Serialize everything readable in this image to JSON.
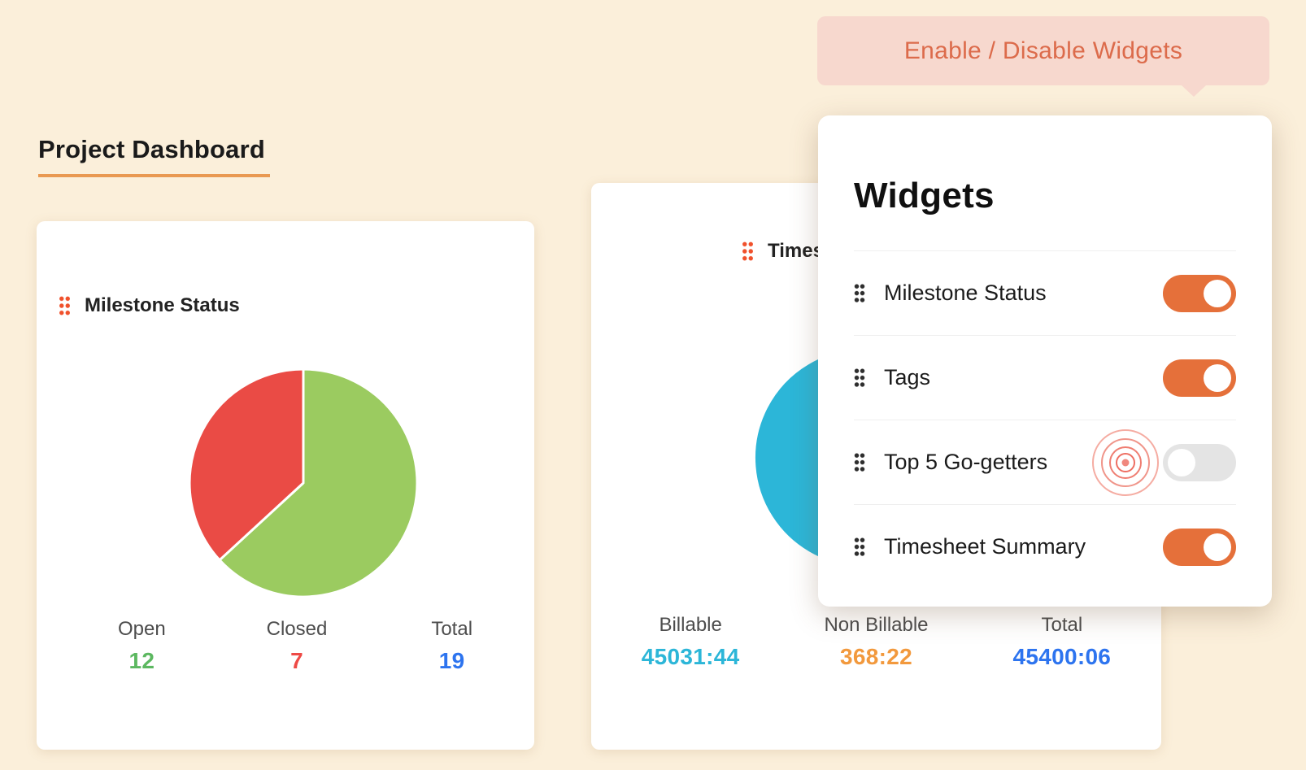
{
  "header": {
    "title": "Project Dashboard",
    "underline_color": "#e99951"
  },
  "tooltip": {
    "label": "Enable / Disable Widgets",
    "bg": "#f7d8ce",
    "text_color": "#dc6b4b"
  },
  "milestone_card": {
    "title": "Milestone Status",
    "stats": [
      {
        "label": "Open",
        "value": "12",
        "color": "#5cb860"
      },
      {
        "label": "Closed",
        "value": "7",
        "color": "#ee4a46"
      },
      {
        "label": "Total",
        "value": "19",
        "color": "#2d74ef"
      }
    ]
  },
  "timesheet_card": {
    "title": "Timesheet Summary",
    "stats": [
      {
        "label": "Billable",
        "value": "45031:44",
        "color": "#2cb6d8"
      },
      {
        "label": "Non Billable",
        "value": "368:22",
        "color": "#f2993d"
      },
      {
        "label": "Total",
        "value": "45400:06",
        "color": "#2d74ef"
      }
    ]
  },
  "widgets_popover": {
    "title": "Widgets",
    "toggle_on_color": "#e5703a",
    "toggle_off_color": "#e4e4e4",
    "items": [
      {
        "label": "Milestone Status",
        "enabled": true,
        "highlight": false
      },
      {
        "label": "Tags",
        "enabled": true,
        "highlight": false
      },
      {
        "label": "Top 5 Go-getters",
        "enabled": false,
        "highlight": true
      },
      {
        "label": "Timesheet Summary",
        "enabled": true,
        "highlight": false
      }
    ]
  },
  "chart_data": [
    {
      "type": "pie",
      "title": "Milestone Status",
      "categories": [
        "Open",
        "Closed"
      ],
      "values": [
        12,
        7
      ],
      "total": 19,
      "colors": [
        "#9bcb60",
        "#ea4b45"
      ],
      "legend_position": "none",
      "start_angle": "top",
      "direction": "clockwise"
    },
    {
      "type": "pie",
      "title": "Timesheet Summary",
      "categories": [
        "Billable",
        "Non Billable"
      ],
      "values": [
        45031.73,
        368.37
      ],
      "display_values": [
        "45031:44",
        "368:22"
      ],
      "total_display": "45400:06",
      "colors": [
        "#2cb6d8",
        "#f2993d"
      ],
      "legend_position": "none",
      "start_angle": "top",
      "direction": "clockwise",
      "note": "mostly hidden behind widgets popover"
    }
  ]
}
